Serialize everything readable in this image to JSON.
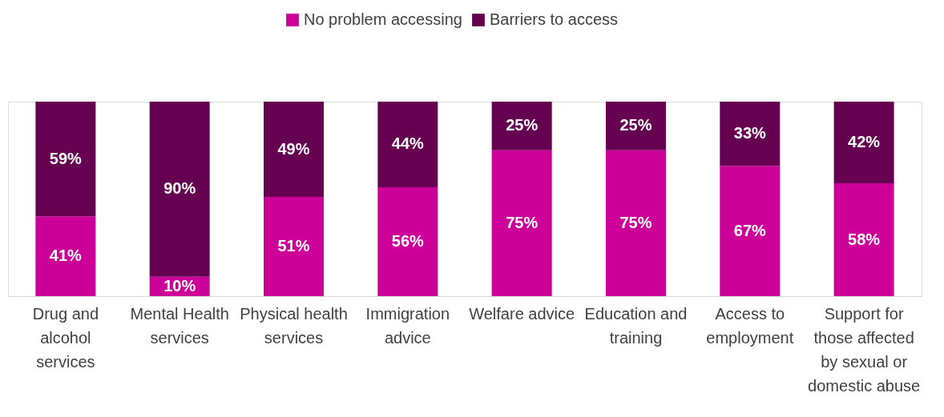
{
  "chart_data": {
    "type": "bar",
    "stacked": true,
    "legend": "top",
    "grid": false,
    "categories": [
      "Drug and alcohol services",
      "Mental Health services",
      "Physical health services",
      "Immigration advice",
      "Welfare advice",
      "Education and training",
      "Access to employment",
      "Support for those affected by sexual or domestic abuse"
    ],
    "series": [
      {
        "name": "No problem accessing",
        "color": "#cc0099",
        "values": [
          41,
          10,
          51,
          56,
          75,
          75,
          67,
          58
        ],
        "value_labels": [
          "41%",
          "10%",
          "51%",
          "56%",
          "75%",
          "75%",
          "67%",
          "58%"
        ]
      },
      {
        "name": "Barriers to access",
        "color": "#660050",
        "values": [
          59,
          90,
          49,
          44,
          25,
          25,
          33,
          42
        ],
        "value_labels": [
          "59%",
          "90%",
          "49%",
          "44%",
          "25%",
          "25%",
          "33%",
          "42%"
        ]
      }
    ]
  }
}
